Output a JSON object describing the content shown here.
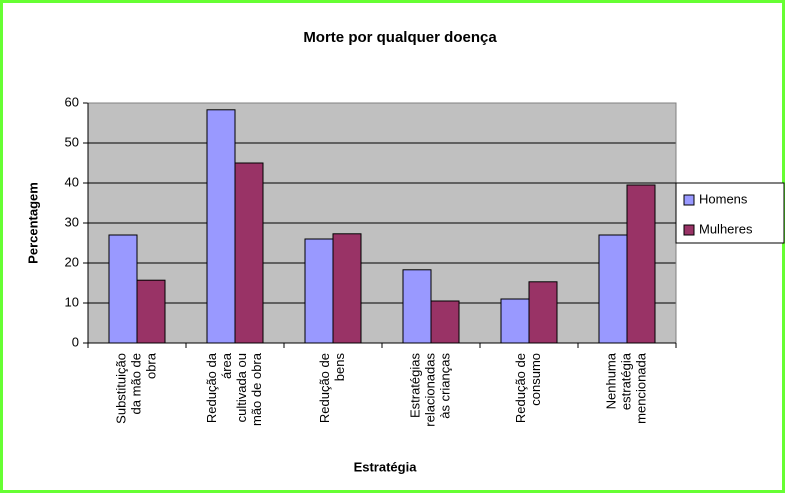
{
  "chart_data": {
    "type": "bar",
    "title": "Morte por qualquer doença",
    "x_label": "Estratégia",
    "y_label": "Percentagem",
    "categories": [
      [
        "Substituição",
        "da mão de",
        "obra"
      ],
      [
        "Redução da",
        "área",
        "cultivada ou",
        "mão de obra"
      ],
      [
        "Redução de",
        "bens"
      ],
      [
        "Estratégias",
        "relacionadas",
        "às crianças"
      ],
      [
        "Redução de",
        "consumo"
      ],
      [
        "Nenhuma",
        "estratégia",
        "mencionada"
      ]
    ],
    "series": [
      {
        "name": "Homens",
        "color": "#9999ff",
        "values": [
          27,
          58.3,
          26,
          18.3,
          11,
          27
        ]
      },
      {
        "name": "Mulheres",
        "color": "#993366",
        "values": [
          15.7,
          45,
          27.3,
          10.5,
          15.3,
          39.5
        ]
      }
    ],
    "ylim": [
      0,
      60
    ],
    "yticks": [
      0,
      10,
      20,
      30,
      40,
      50,
      60
    ],
    "grid": true,
    "legend": "right"
  }
}
